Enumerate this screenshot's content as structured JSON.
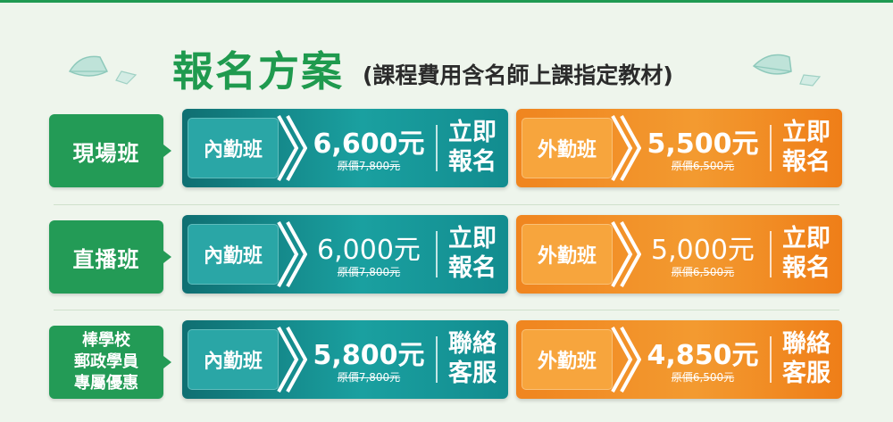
{
  "header": {
    "title": "報名方案",
    "subtitle": "(課程費用含名師上課指定教材)"
  },
  "colors": {
    "green": "#239b56",
    "teal": "#17979a",
    "orange": "#f39a30"
  },
  "rows": [
    {
      "label_lines": [
        "現場班"
      ],
      "internal": {
        "badge": "內勤班",
        "price": "6,600元",
        "original": "原價7,800元",
        "action_lines": [
          "立即",
          "報名"
        ]
      },
      "external": {
        "badge": "外勤班",
        "price": "5,500元",
        "original": "原價6,500元",
        "action_lines": [
          "立即",
          "報名"
        ]
      }
    },
    {
      "label_lines": [
        "直播班"
      ],
      "internal": {
        "badge": "內勤班",
        "price": "6,000元",
        "original": "原價7,800元",
        "action_lines": [
          "立即",
          "報名"
        ]
      },
      "external": {
        "badge": "外勤班",
        "price": "5,000元",
        "original": "原價6,500元",
        "action_lines": [
          "立即",
          "報名"
        ]
      }
    },
    {
      "label_lines": [
        "棒學校",
        "郵政學員",
        "專屬優惠"
      ],
      "internal": {
        "badge": "內勤班",
        "price": "5,800元",
        "original": "原價7,800元",
        "action_lines": [
          "聯絡",
          "客服"
        ]
      },
      "external": {
        "badge": "外勤班",
        "price": "4,850元",
        "original": "原價6,500元",
        "action_lines": [
          "聯絡",
          "客服"
        ]
      }
    }
  ]
}
